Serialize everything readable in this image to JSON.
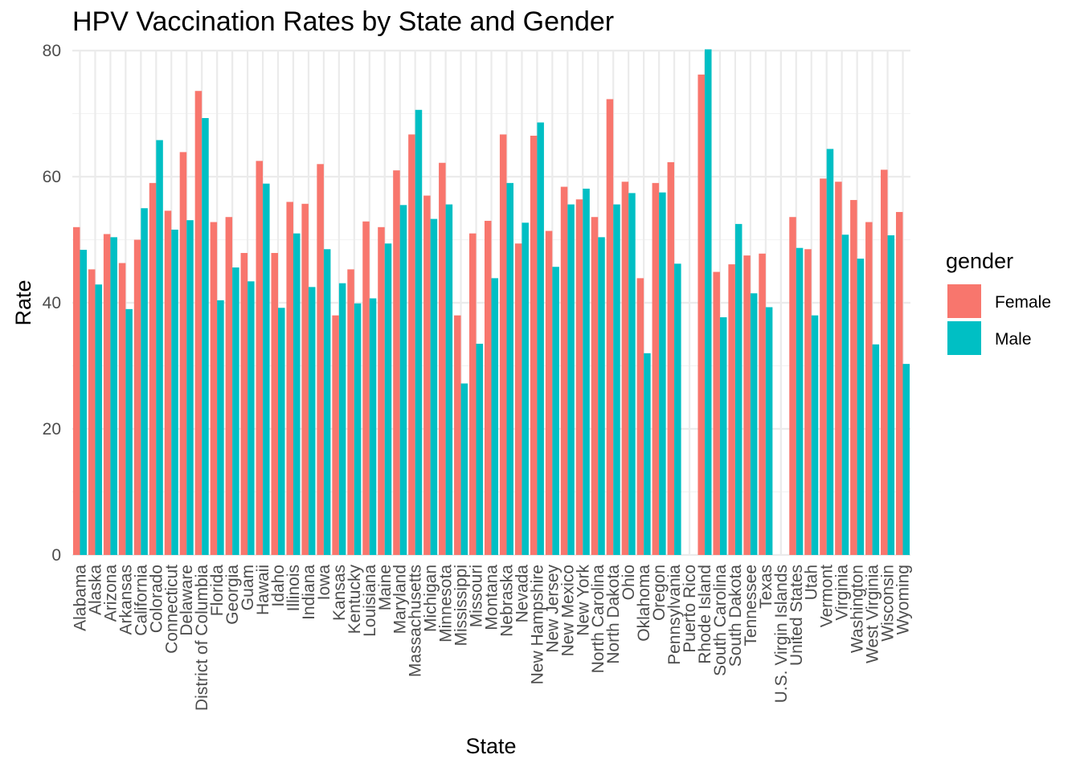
{
  "chart_data": {
    "type": "bar",
    "title": "HPV Vaccination Rates by State and Gender",
    "xlabel": "State",
    "ylabel": "Rate",
    "ylim": [
      0,
      80
    ],
    "yticks": [
      0,
      20,
      40,
      60,
      80
    ],
    "grid": true,
    "legend": {
      "title": "gender",
      "position": "right"
    },
    "categories": [
      "Alabama",
      "Alaska",
      "Arizona",
      "Arkansas",
      "California",
      "Colorado",
      "Connecticut",
      "Delaware",
      "District of Columbia",
      "Florida",
      "Georgia",
      "Guam",
      "Hawaii",
      "Idaho",
      "Illinois",
      "Indiana",
      "Iowa",
      "Kansas",
      "Kentucky",
      "Louisiana",
      "Maine",
      "Maryland",
      "Massachusetts",
      "Michigan",
      "Minnesota",
      "Mississippi",
      "Missouri",
      "Montana",
      "Nebraska",
      "Nevada",
      "New Hampshire",
      "New Jersey",
      "New Mexico",
      "New York",
      "North Carolina",
      "North Dakota",
      "Ohio",
      "Oklahoma",
      "Oregon",
      "Pennsylvania",
      "Puerto Rico",
      "Rhode Island",
      "South Carolina",
      "South Dakota",
      "Tennessee",
      "Texas",
      "U.S. Virgin Islands",
      "United States",
      "Utah",
      "Vermont",
      "Virginia",
      "Washington",
      "West Virginia",
      "Wisconsin",
      "Wyoming"
    ],
    "series": [
      {
        "name": "Female",
        "color": "#F8766D",
        "values": [
          52.0,
          45.3,
          50.9,
          46.3,
          50.0,
          59.0,
          54.6,
          63.9,
          73.6,
          52.8,
          53.6,
          47.9,
          62.5,
          47.9,
          56.0,
          55.7,
          62.0,
          38.0,
          45.3,
          52.9,
          52.0,
          61.0,
          66.7,
          57.0,
          62.2,
          38.0,
          51.0,
          53.0,
          66.7,
          49.4,
          66.5,
          51.4,
          58.4,
          56.4,
          53.6,
          72.3,
          59.2,
          43.9,
          59.0,
          62.3,
          null,
          76.2,
          44.9,
          46.1,
          47.5,
          47.8,
          null,
          53.6,
          48.5,
          59.7,
          59.2,
          56.3,
          52.8,
          61.1,
          54.4
        ]
      },
      {
        "name": "Male",
        "color": "#00BFC4",
        "values": [
          48.4,
          42.9,
          50.4,
          39.0,
          55.0,
          65.8,
          51.6,
          53.1,
          69.3,
          40.4,
          45.6,
          43.4,
          58.9,
          39.2,
          51.0,
          42.5,
          48.5,
          43.1,
          39.9,
          40.7,
          49.4,
          55.5,
          70.6,
          53.3,
          55.6,
          27.2,
          33.5,
          43.9,
          59.0,
          52.7,
          68.6,
          45.7,
          55.6,
          58.1,
          50.4,
          55.6,
          57.4,
          32.0,
          57.5,
          46.2,
          null,
          80.2,
          37.7,
          52.5,
          41.5,
          39.3,
          null,
          48.7,
          38.0,
          64.4,
          50.8,
          47.0,
          33.4,
          50.7,
          30.3
        ]
      }
    ]
  }
}
